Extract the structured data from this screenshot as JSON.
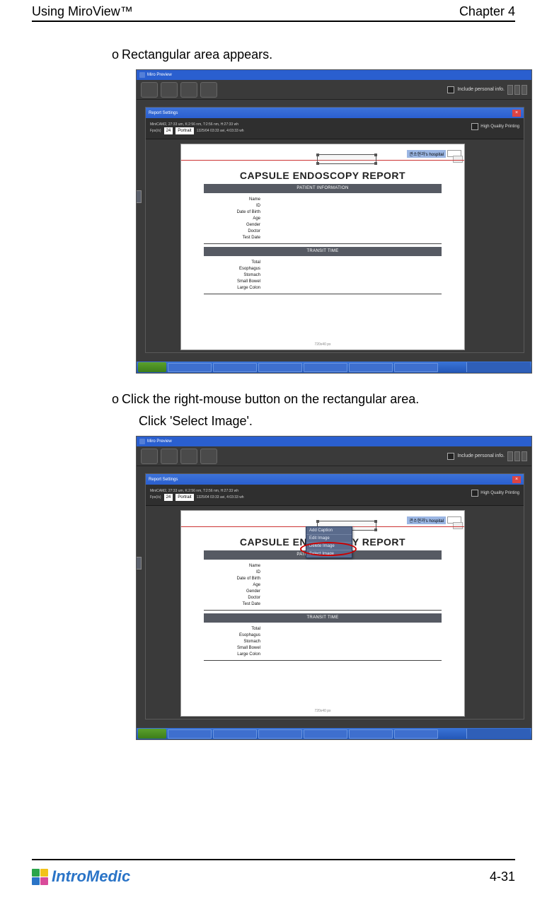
{
  "header": {
    "left": "Using MiroView™",
    "right": "Chapter 4"
  },
  "body": {
    "line1": "Rectangular area appears.",
    "line2a": "Click the right-mouse button on the rectangular area.",
    "line2b": "Click 'Select Image'."
  },
  "screenshot": {
    "app_title": "Miro Preview",
    "toolbar_right_label": "Include personal info.",
    "report_win_title": "Report Settings",
    "top_info_line": "MiniCAM2, 27:33 um, K:2:56 nm, T:2:56 nm, H:27:33 wh",
    "fps_label": "Fps(/s)",
    "fps_value": "24",
    "orient_label": "Portrait",
    "extra_info": "1325/04 03:33 avi, 4:03:33 wh",
    "hq_label": "High Quality Printing",
    "hospital_tag": "관소현과's hospital",
    "report_title": "CAPSULE ENDOSCOPY REPORT",
    "band1": "PATIENT INFORMATION",
    "band2": "TRANSIT TIME",
    "patient_fields": [
      "Name",
      "ID",
      "Date of Birth",
      "Age",
      "Gender",
      "Doctor",
      "Test Date"
    ],
    "transit_fields": [
      "Total",
      "Esophagus",
      "Stomach",
      "Small Bowel",
      "Large Colon"
    ],
    "paper_bottom": "720x40 px",
    "context_menu": [
      "Add Caption",
      "Edit Image",
      "Delete Image",
      "Select Image"
    ]
  },
  "footer": {
    "logo_text": "IntroMedic",
    "logo_colors": [
      "#2aa54a",
      "#f2c21a",
      "#2a74c7",
      "#d94b9a"
    ],
    "page": "4-31"
  }
}
